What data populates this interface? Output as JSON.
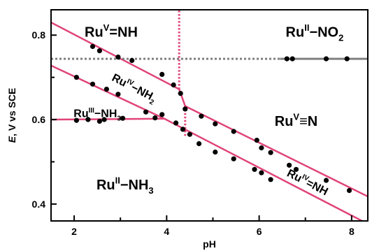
{
  "chart_data": {
    "type": "scatter",
    "xlabel": "pH",
    "ylabel_parts": {
      "italic": "E",
      "rest": ", V vs SCE"
    },
    "xlim": [
      1.5,
      8.35
    ],
    "ylim": [
      0.36,
      0.86
    ],
    "xticks": [
      2,
      4,
      6,
      8
    ],
    "yticks": [
      0.4,
      0.6,
      0.8
    ],
    "x_minor_ticks": [
      3,
      5,
      7
    ],
    "y_minor_ticks": [
      0.5,
      0.7
    ],
    "grid": false,
    "series": [
      {
        "points": [
          [
            2.4,
            0.773
          ],
          [
            2.55,
            0.763
          ],
          [
            2.95,
            0.748
          ],
          [
            3.25,
            0.74
          ],
          [
            3.9,
            0.707
          ],
          [
            4.15,
            0.682
          ],
          [
            4.3,
            0.662
          ],
          [
            4.4,
            0.625
          ],
          [
            4.75,
            0.608
          ],
          [
            5.05,
            0.59
          ],
          [
            5.45,
            0.572
          ],
          [
            5.95,
            0.551
          ],
          [
            6.05,
            0.533
          ],
          [
            6.25,
            0.522
          ],
          [
            6.65,
            0.492
          ],
          [
            6.8,
            0.482
          ],
          [
            7.45,
            0.456
          ],
          [
            7.95,
            0.432
          ],
          [
            2.05,
            0.7
          ],
          [
            2.4,
            0.684
          ],
          [
            2.7,
            0.672
          ],
          [
            2.95,
            0.66
          ],
          [
            3.55,
            0.618
          ],
          [
            3.9,
            0.612
          ],
          [
            4.2,
            0.592
          ],
          [
            4.35,
            0.577
          ],
          [
            4.5,
            0.565
          ],
          [
            4.7,
            0.543
          ],
          [
            5.05,
            0.523
          ],
          [
            5.45,
            0.507
          ],
          [
            5.9,
            0.482
          ],
          [
            6.05,
            0.474
          ],
          [
            6.25,
            0.458
          ],
          [
            2.05,
            0.598
          ],
          [
            2.3,
            0.6
          ],
          [
            2.55,
            0.596
          ],
          [
            2.65,
            0.6
          ],
          [
            3.05,
            0.603
          ],
          [
            3.75,
            0.604
          ],
          [
            6.6,
            0.744
          ],
          [
            6.72,
            0.744
          ],
          [
            7.45,
            0.744
          ],
          [
            7.9,
            0.744
          ]
        ]
      }
    ],
    "boundary_lines": [
      {
        "kind": "solid",
        "points": [
          [
            1.5,
            0.83
          ],
          [
            4.27,
            0.672
          ],
          [
            4.4,
            0.632
          ],
          [
            8.35,
            0.418
          ]
        ]
      },
      {
        "kind": "solid",
        "points": [
          [
            1.5,
            0.728
          ],
          [
            3.95,
            0.602
          ],
          [
            8.35,
            0.353
          ]
        ]
      },
      {
        "kind": "solid",
        "points": [
          [
            1.5,
            0.6
          ],
          [
            3.95,
            0.602
          ]
        ]
      },
      {
        "kind": "dotted",
        "points": [
          [
            4.27,
            0.672
          ],
          [
            4.27,
            0.86
          ]
        ]
      },
      {
        "kind": "dotted",
        "points": [
          [
            4.4,
            0.632
          ],
          [
            4.4,
            0.56
          ]
        ]
      },
      {
        "kind": "gray-dotted",
        "points": [
          [
            1.5,
            0.744
          ],
          [
            6.45,
            0.744
          ]
        ]
      },
      {
        "kind": "gray-solid",
        "points": [
          [
            6.45,
            0.744
          ],
          [
            8.35,
            0.744
          ]
        ]
      }
    ],
    "region_labels": [
      {
        "id": "ru-v-nh",
        "base": "Ru",
        "sup": "V",
        "rest": "=NH",
        "at": [
          2.8,
          0.808
        ],
        "size": 20
      },
      {
        "id": "ru-ii-no2",
        "base": "Ru",
        "sup": "II",
        "rest": "−NO",
        "sub": "2",
        "at": [
          7.2,
          0.808
        ],
        "size": 20
      },
      {
        "id": "ru-iv-nh2",
        "base": "Ru",
        "sup": "IV",
        "rest": "−NH",
        "sub": "2",
        "at": [
          3.3,
          0.676
        ],
        "size": 16,
        "rotate": 27
      },
      {
        "id": "ru-iii-nh3",
        "base": "Ru",
        "sup": "III",
        "rest": "−NH",
        "sub": "3",
        "at": [
          2.5,
          0.615
        ],
        "size": 16
      },
      {
        "id": "ru-v-n",
        "base": "Ru",
        "sup": "V",
        "rest": "≡N",
        "at": [
          6.8,
          0.597
        ],
        "size": 20
      },
      {
        "id": "ru-ii-nh3",
        "base": "Ru",
        "sup": "II",
        "rest": "−NH",
        "sub": "3",
        "at": [
          3.1,
          0.446
        ],
        "size": 20
      },
      {
        "id": "ru-iv-nh",
        "base": "Ru",
        "sup": "IV",
        "rest": "=NH",
        "at": [
          7.05,
          0.452
        ],
        "size": 16,
        "rotate": 27
      }
    ],
    "colors": {
      "boundary": "#e0447a",
      "reference": "#808080",
      "points": "#000000",
      "text": "#000000"
    }
  }
}
